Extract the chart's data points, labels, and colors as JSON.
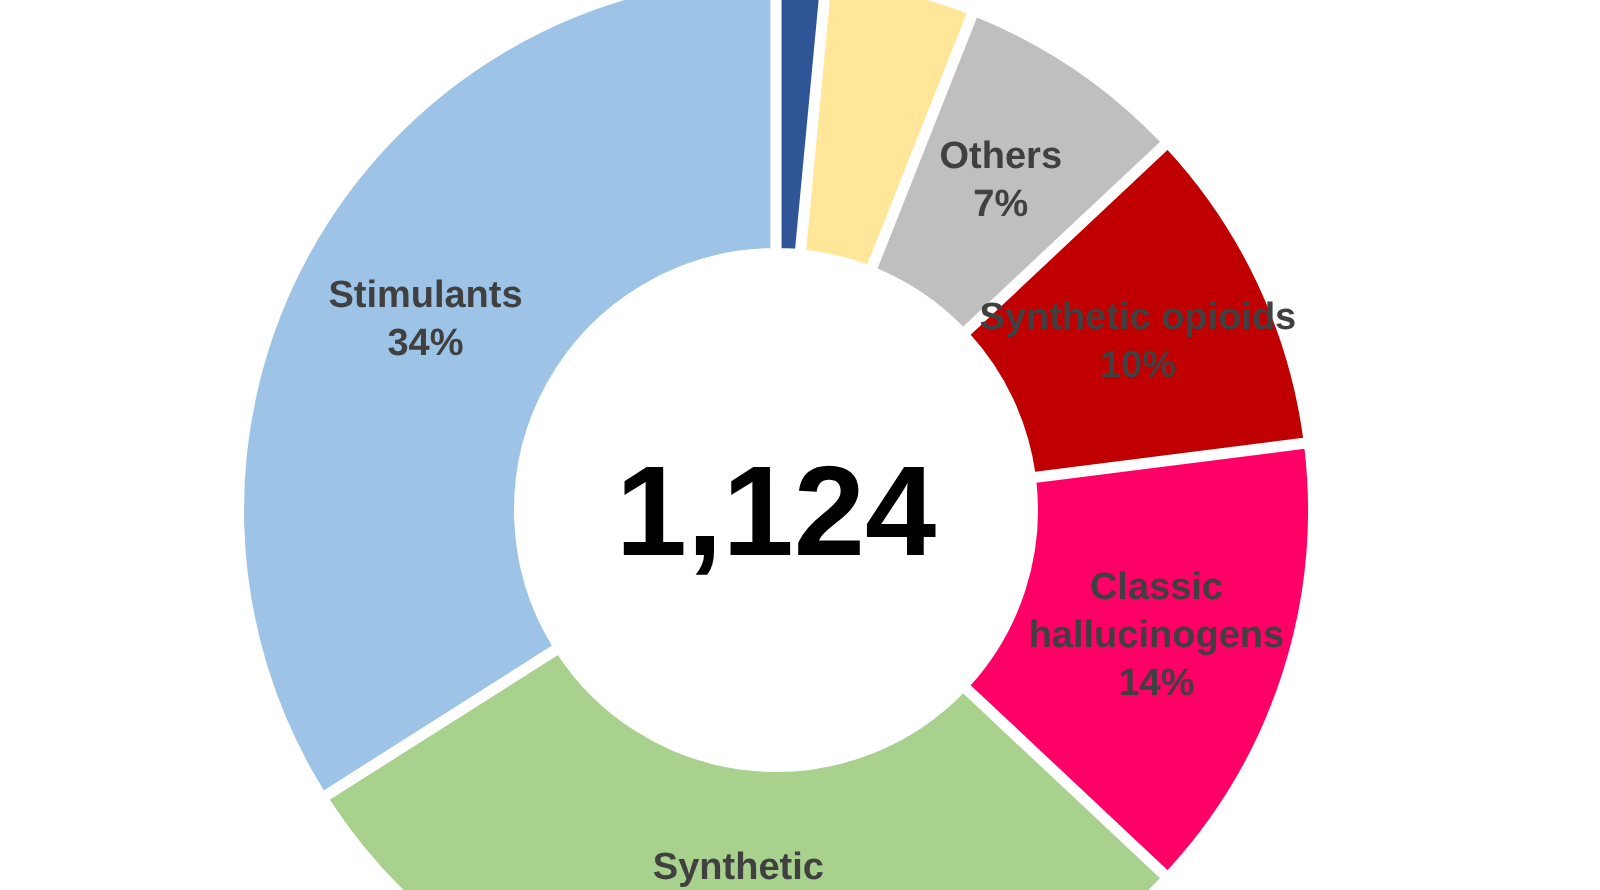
{
  "chart_data": {
    "type": "donut",
    "categories": [
      null,
      null,
      "Others",
      "Synthetic opioids",
      "Classic hallucinogens",
      "Synthetic",
      "Stimulants"
    ],
    "values": [
      1.5,
      4.5,
      7,
      10,
      14,
      29,
      34
    ],
    "value_labels": [
      null,
      null,
      "7%",
      "10%",
      "14%",
      null,
      "34%"
    ],
    "colors": [
      "#2f5597",
      "#ffe699",
      "#bfbfbf",
      "#c00000",
      "#ff0066",
      "#a9d18e",
      "#9dc3e6"
    ],
    "annotations": [
      "1,124"
    ]
  }
}
